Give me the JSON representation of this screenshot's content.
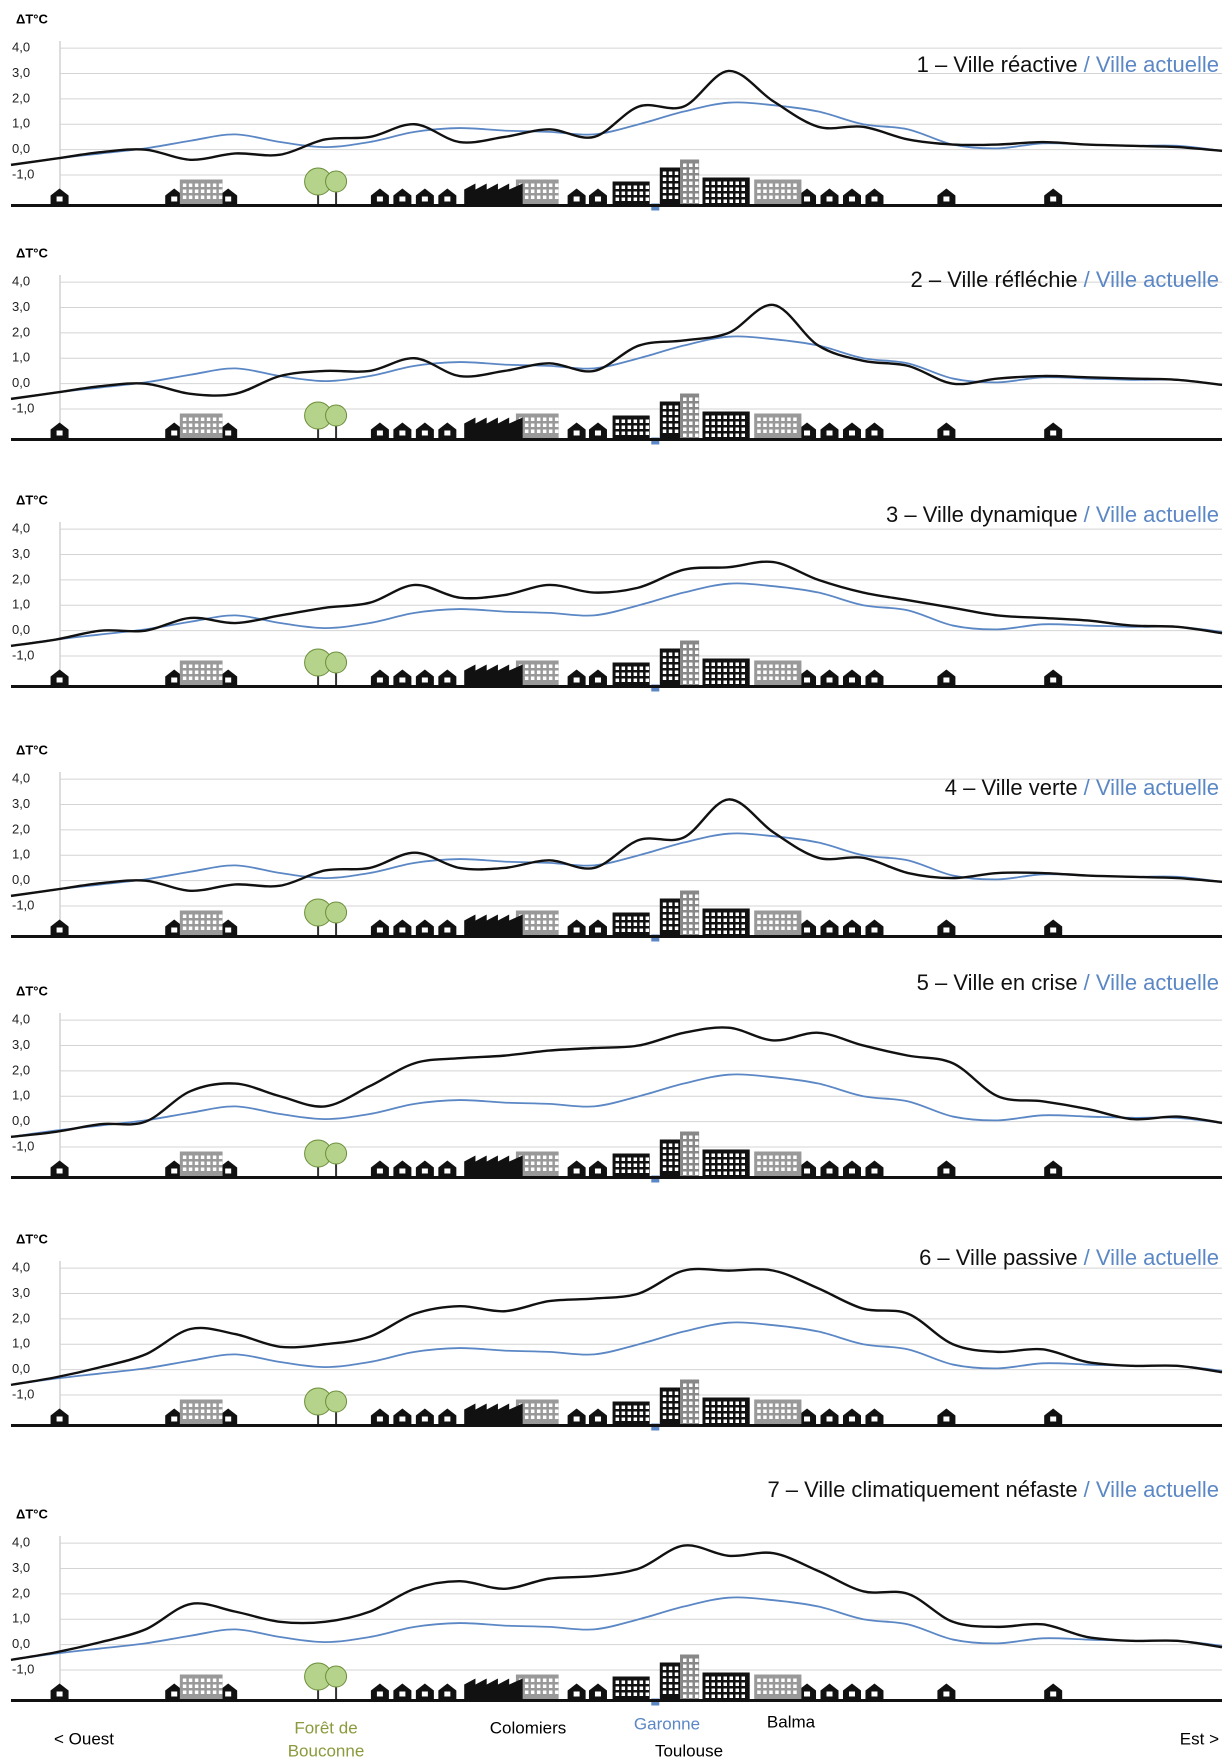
{
  "chart_data": [
    {
      "type": "line",
      "y_label": "ΔT°C",
      "ylim": [
        -2.2,
        4.2
      ],
      "yticks": [
        {
          "value": -1,
          "label": "-1,0"
        },
        {
          "value": 0,
          "label": "0,0"
        },
        {
          "value": 1,
          "label": "1,0"
        },
        {
          "value": 2,
          "label": "2,0"
        },
        {
          "value": 3,
          "label": "3,0"
        },
        {
          "value": 4,
          "label": "4,0"
        }
      ],
      "grid": true,
      "categories": [
        null,
        null,
        null,
        null,
        null,
        null,
        null,
        null,
        null,
        null,
        null,
        null,
        null,
        null,
        null,
        null,
        null,
        null,
        null,
        null,
        null,
        null,
        null,
        null,
        null,
        null,
        null,
        null
      ],
      "series": [
        {
          "name": "1 – Ville réactive",
          "color": "#111111",
          "values": [
            -0.6,
            -0.35,
            -0.1,
            0.0,
            -0.4,
            -0.15,
            -0.2,
            0.4,
            0.5,
            1.0,
            0.3,
            0.5,
            0.8,
            0.5,
            1.7,
            1.7,
            3.1,
            1.9,
            0.9,
            0.9,
            0.4,
            0.2,
            0.2,
            0.3,
            0.2,
            0.15,
            0.1,
            -0.05
          ]
        },
        {
          "name": "/ Ville actuelle",
          "color": "#5b87c5",
          "values": [
            -0.6,
            -0.35,
            -0.15,
            0.05,
            0.35,
            0.6,
            0.3,
            0.1,
            0.3,
            0.7,
            0.85,
            0.75,
            0.7,
            0.6,
            1.0,
            1.5,
            1.85,
            1.75,
            1.5,
            1.0,
            0.8,
            0.2,
            0.05,
            0.25,
            0.2,
            0.15,
            0.15,
            -0.05
          ]
        }
      ]
    },
    {
      "type": "line",
      "y_label": "ΔT°C",
      "ylim": [
        -2.2,
        4.2
      ],
      "yticks": [
        {
          "value": -1,
          "label": "-1,0"
        },
        {
          "value": 0,
          "label": "0,0"
        },
        {
          "value": 1,
          "label": "1,0"
        },
        {
          "value": 2,
          "label": "2,0"
        },
        {
          "value": 3,
          "label": "3,0"
        },
        {
          "value": 4,
          "label": "4,0"
        }
      ],
      "grid": true,
      "categories": [
        null,
        null,
        null,
        null,
        null,
        null,
        null,
        null,
        null,
        null,
        null,
        null,
        null,
        null,
        null,
        null,
        null,
        null,
        null,
        null,
        null,
        null,
        null,
        null,
        null,
        null,
        null,
        null
      ],
      "series": [
        {
          "name": "2 – Ville réfléchie",
          "color": "#111111",
          "values": [
            -0.6,
            -0.35,
            -0.1,
            0.0,
            -0.4,
            -0.4,
            0.3,
            0.5,
            0.5,
            1.0,
            0.3,
            0.5,
            0.8,
            0.5,
            1.5,
            1.7,
            2.0,
            3.1,
            1.5,
            0.9,
            0.7,
            0.0,
            0.2,
            0.3,
            0.25,
            0.2,
            0.15,
            -0.05
          ]
        },
        {
          "name": "/ Ville actuelle",
          "color": "#5b87c5",
          "values": [
            -0.6,
            -0.35,
            -0.15,
            0.05,
            0.35,
            0.6,
            0.3,
            0.1,
            0.3,
            0.7,
            0.85,
            0.75,
            0.7,
            0.6,
            1.0,
            1.5,
            1.85,
            1.75,
            1.5,
            1.0,
            0.8,
            0.2,
            0.05,
            0.25,
            0.2,
            0.15,
            0.15,
            -0.05
          ]
        }
      ]
    },
    {
      "type": "line",
      "y_label": "ΔT°C",
      "ylim": [
        -2.2,
        4.2
      ],
      "yticks": [
        {
          "value": -1,
          "label": "-1,0"
        },
        {
          "value": 0,
          "label": "0,0"
        },
        {
          "value": 1,
          "label": "1,0"
        },
        {
          "value": 2,
          "label": "2,0"
        },
        {
          "value": 3,
          "label": "3,0"
        },
        {
          "value": 4,
          "label": "4,0"
        }
      ],
      "grid": true,
      "categories": [
        null,
        null,
        null,
        null,
        null,
        null,
        null,
        null,
        null,
        null,
        null,
        null,
        null,
        null,
        null,
        null,
        null,
        null,
        null,
        null,
        null,
        null,
        null,
        null,
        null,
        null,
        null,
        null
      ],
      "series": [
        {
          "name": "3 – Ville dynamique",
          "color": "#111111",
          "values": [
            -0.6,
            -0.35,
            0.0,
            0.0,
            0.5,
            0.3,
            0.6,
            0.9,
            1.1,
            1.8,
            1.3,
            1.4,
            1.8,
            1.5,
            1.7,
            2.4,
            2.5,
            2.7,
            2.0,
            1.5,
            1.2,
            0.9,
            0.6,
            0.5,
            0.4,
            0.2,
            0.15,
            -0.1
          ]
        },
        {
          "name": "/ Ville actuelle",
          "color": "#5b87c5",
          "values": [
            -0.6,
            -0.35,
            -0.15,
            0.05,
            0.35,
            0.6,
            0.3,
            0.1,
            0.3,
            0.7,
            0.85,
            0.75,
            0.7,
            0.6,
            1.0,
            1.5,
            1.85,
            1.75,
            1.5,
            1.0,
            0.8,
            0.2,
            0.05,
            0.25,
            0.2,
            0.15,
            0.15,
            -0.05
          ]
        }
      ]
    },
    {
      "type": "line",
      "y_label": "ΔT°C",
      "ylim": [
        -2.2,
        4.2
      ],
      "yticks": [
        {
          "value": -1,
          "label": "-1,0"
        },
        {
          "value": 0,
          "label": "0,0"
        },
        {
          "value": 1,
          "label": "1,0"
        },
        {
          "value": 2,
          "label": "2,0"
        },
        {
          "value": 3,
          "label": "3,0"
        },
        {
          "value": 4,
          "label": "4,0"
        }
      ],
      "grid": true,
      "categories": [
        null,
        null,
        null,
        null,
        null,
        null,
        null,
        null,
        null,
        null,
        null,
        null,
        null,
        null,
        null,
        null,
        null,
        null,
        null,
        null,
        null,
        null,
        null,
        null,
        null,
        null,
        null,
        null
      ],
      "series": [
        {
          "name": "4 – Ville verte",
          "color": "#111111",
          "values": [
            -0.6,
            -0.35,
            -0.1,
            0.0,
            -0.4,
            -0.15,
            -0.2,
            0.4,
            0.5,
            1.1,
            0.5,
            0.5,
            0.8,
            0.5,
            1.6,
            1.7,
            3.2,
            1.9,
            0.9,
            0.9,
            0.3,
            0.1,
            0.3,
            0.3,
            0.2,
            0.15,
            0.1,
            -0.05
          ]
        },
        {
          "name": "/ Ville actuelle",
          "color": "#5b87c5",
          "values": [
            -0.6,
            -0.35,
            -0.15,
            0.05,
            0.35,
            0.6,
            0.3,
            0.1,
            0.3,
            0.7,
            0.85,
            0.75,
            0.7,
            0.6,
            1.0,
            1.5,
            1.85,
            1.75,
            1.5,
            1.0,
            0.8,
            0.2,
            0.05,
            0.25,
            0.2,
            0.15,
            0.15,
            -0.05
          ]
        }
      ]
    },
    {
      "type": "line",
      "y_label": "ΔT°C",
      "ylim": [
        -2.2,
        4.2
      ],
      "yticks": [
        {
          "value": -1,
          "label": "-1,0"
        },
        {
          "value": 0,
          "label": "0,0"
        },
        {
          "value": 1,
          "label": "1,0"
        },
        {
          "value": 2,
          "label": "2,0"
        },
        {
          "value": 3,
          "label": "3,0"
        },
        {
          "value": 4,
          "label": "4,0"
        }
      ],
      "grid": true,
      "categories": [
        null,
        null,
        null,
        null,
        null,
        null,
        null,
        null,
        null,
        null,
        null,
        null,
        null,
        null,
        null,
        null,
        null,
        null,
        null,
        null,
        null,
        null,
        null,
        null,
        null,
        null,
        null,
        null
      ],
      "series": [
        {
          "name": "5 – Ville en crise",
          "color": "#111111",
          "values": [
            -0.6,
            -0.4,
            -0.1,
            0.0,
            1.2,
            1.5,
            1.0,
            0.6,
            1.4,
            2.3,
            2.5,
            2.6,
            2.8,
            2.9,
            3.0,
            3.5,
            3.7,
            3.2,
            3.5,
            3.0,
            2.6,
            2.3,
            1.0,
            0.8,
            0.5,
            0.1,
            0.2,
            -0.05
          ]
        },
        {
          "name": "/ Ville actuelle",
          "color": "#5b87c5",
          "values": [
            -0.6,
            -0.35,
            -0.15,
            0.05,
            0.35,
            0.6,
            0.3,
            0.1,
            0.3,
            0.7,
            0.85,
            0.75,
            0.7,
            0.6,
            1.0,
            1.5,
            1.85,
            1.75,
            1.5,
            1.0,
            0.8,
            0.2,
            0.05,
            0.25,
            0.2,
            0.15,
            0.15,
            -0.05
          ]
        }
      ]
    },
    {
      "type": "line",
      "y_label": "ΔT°C",
      "ylim": [
        -2.2,
        4.2
      ],
      "yticks": [
        {
          "value": -1,
          "label": "-1,0"
        },
        {
          "value": 0,
          "label": "0,0"
        },
        {
          "value": 1,
          "label": "1,0"
        },
        {
          "value": 2,
          "label": "2,0"
        },
        {
          "value": 3,
          "label": "3,0"
        },
        {
          "value": 4,
          "label": "4,0"
        }
      ],
      "grid": true,
      "categories": [
        null,
        null,
        null,
        null,
        null,
        null,
        null,
        null,
        null,
        null,
        null,
        null,
        null,
        null,
        null,
        null,
        null,
        null,
        null,
        null,
        null,
        null,
        null,
        null,
        null,
        null,
        null,
        null
      ],
      "series": [
        {
          "name": "6 – Ville passive",
          "color": "#111111",
          "values": [
            -0.6,
            -0.3,
            0.1,
            0.6,
            1.6,
            1.4,
            0.9,
            1.0,
            1.3,
            2.2,
            2.5,
            2.3,
            2.7,
            2.8,
            3.0,
            3.9,
            3.9,
            3.9,
            3.2,
            2.4,
            2.2,
            1.0,
            0.7,
            0.8,
            0.3,
            0.15,
            0.15,
            -0.1
          ]
        },
        {
          "name": "/ Ville actuelle",
          "color": "#5b87c5",
          "values": [
            -0.6,
            -0.35,
            -0.15,
            0.05,
            0.35,
            0.6,
            0.3,
            0.1,
            0.3,
            0.7,
            0.85,
            0.75,
            0.7,
            0.6,
            1.0,
            1.5,
            1.85,
            1.75,
            1.5,
            1.0,
            0.8,
            0.2,
            0.05,
            0.25,
            0.2,
            0.15,
            0.15,
            -0.05
          ]
        }
      ]
    },
    {
      "type": "line",
      "y_label": "ΔT°C",
      "ylim": [
        -2.2,
        4.2
      ],
      "yticks": [
        {
          "value": -1,
          "label": "-1,0"
        },
        {
          "value": 0,
          "label": "0,0"
        },
        {
          "value": 1,
          "label": "1,0"
        },
        {
          "value": 2,
          "label": "2,0"
        },
        {
          "value": 3,
          "label": "3,0"
        },
        {
          "value": 4,
          "label": "4,0"
        }
      ],
      "grid": true,
      "categories": [
        null,
        null,
        null,
        null,
        null,
        null,
        null,
        null,
        null,
        null,
        null,
        null,
        null,
        null,
        null,
        null,
        null,
        null,
        null,
        null,
        null,
        null,
        null,
        null,
        null,
        null,
        null,
        null
      ],
      "series": [
        {
          "name": "7 – Ville climatiquement néfaste",
          "color": "#111111",
          "values": [
            -0.6,
            -0.3,
            0.1,
            0.6,
            1.6,
            1.3,
            0.9,
            0.9,
            1.3,
            2.2,
            2.5,
            2.2,
            2.6,
            2.7,
            3.0,
            3.9,
            3.5,
            3.6,
            2.9,
            2.1,
            2.0,
            0.9,
            0.7,
            0.8,
            0.3,
            0.15,
            0.15,
            -0.1
          ]
        },
        {
          "name": "/ Ville actuelle",
          "color": "#5b87c5",
          "values": [
            -0.6,
            -0.35,
            -0.15,
            0.05,
            0.35,
            0.6,
            0.3,
            0.1,
            0.3,
            0.7,
            0.85,
            0.75,
            0.7,
            0.6,
            1.0,
            1.5,
            1.85,
            1.75,
            1.5,
            1.0,
            0.8,
            0.2,
            0.05,
            0.25,
            0.2,
            0.15,
            0.15,
            -0.05
          ]
        }
      ]
    }
  ],
  "places": {
    "west": "< Ouest",
    "forest": [
      "Forêt de",
      "Bouconne"
    ],
    "colomiers": "Colomiers",
    "garonne": "Garonne",
    "toulouse": "Toulouse",
    "balma": "Balma",
    "east": "Est >"
  }
}
